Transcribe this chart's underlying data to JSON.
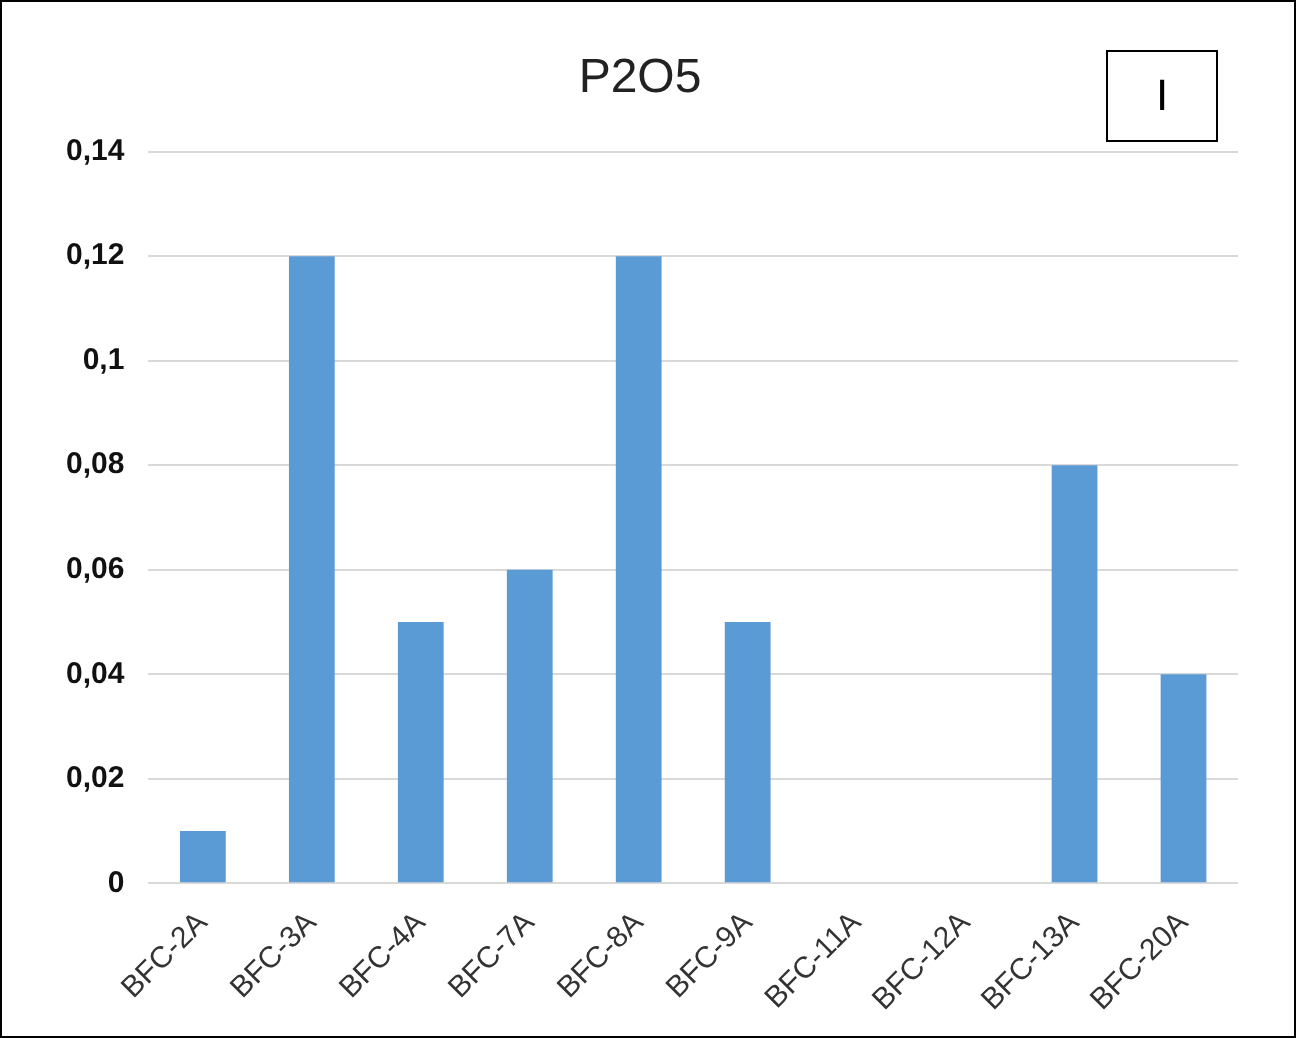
{
  "chart_data": {
    "type": "bar",
    "title": "P2O5",
    "annotations": [
      "I"
    ],
    "categories": [
      "BFC-2A",
      "BFC-3A",
      "BFC-4A",
      "BFC-7A",
      "BFC-8A",
      "BFC-9A",
      "BFC-11A",
      "BFC-12A",
      "BFC-13A",
      "BFC-20A"
    ],
    "values": [
      0.01,
      0.12,
      0.05,
      0.06,
      0.12,
      0.05,
      0,
      0,
      0.08,
      0.04
    ],
    "color": "#5b9bd5",
    "ylim": [
      0,
      0.14
    ],
    "yticks": [
      {
        "value": 0,
        "label": "0"
      },
      {
        "value": 0.02,
        "label": "0,02"
      },
      {
        "value": 0.04,
        "label": "0,04"
      },
      {
        "value": 0.06,
        "label": "0,06"
      },
      {
        "value": 0.08,
        "label": "0,08"
      },
      {
        "value": 0.1,
        "label": "0,1"
      },
      {
        "value": 0.12,
        "label": "0,12"
      },
      {
        "value": 0.14,
        "label": "0,14"
      }
    ],
    "grid": "y",
    "legend": false
  }
}
